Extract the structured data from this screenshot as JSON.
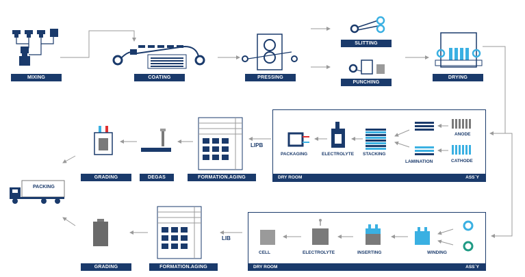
{
  "steps": {
    "mixing": "MIXING",
    "coating": "COATING",
    "pressing": "PRESSING",
    "slitting": "SLITTING",
    "punching": "PUNCHING",
    "drying": "DRYING",
    "grading_lipb": "GRADING",
    "degas": "DEGAS",
    "formation_lipb": "FORMATION.AGING",
    "grading_lib": "GRADING",
    "formation_lib": "FORMATION.AGING"
  },
  "lipb_room": {
    "tag": "LIPB",
    "footer_left": "DRY ROOM",
    "footer_right": "ASS´Y",
    "packaging": "PACKAGING",
    "electrolyte": "ELECTROLYTE",
    "stacking": "STACKING",
    "lamination": "LAMINATION",
    "anode": "ANODE",
    "cathode": "CATHODE"
  },
  "lib_room": {
    "tag": "LIB",
    "footer_left": "DRY ROOM",
    "footer_right": "ASS´Y",
    "cell": "CELL",
    "electrolyte": "ELECTROLYTE",
    "inserting": "INSERTING",
    "winding": "WINDING"
  },
  "truck": {
    "label": "PACKING"
  },
  "colors": {
    "navy": "#1a3a6b",
    "cyan": "#3ab0e2",
    "teal": "#1f9a84",
    "gray": "#7a7a7a"
  }
}
